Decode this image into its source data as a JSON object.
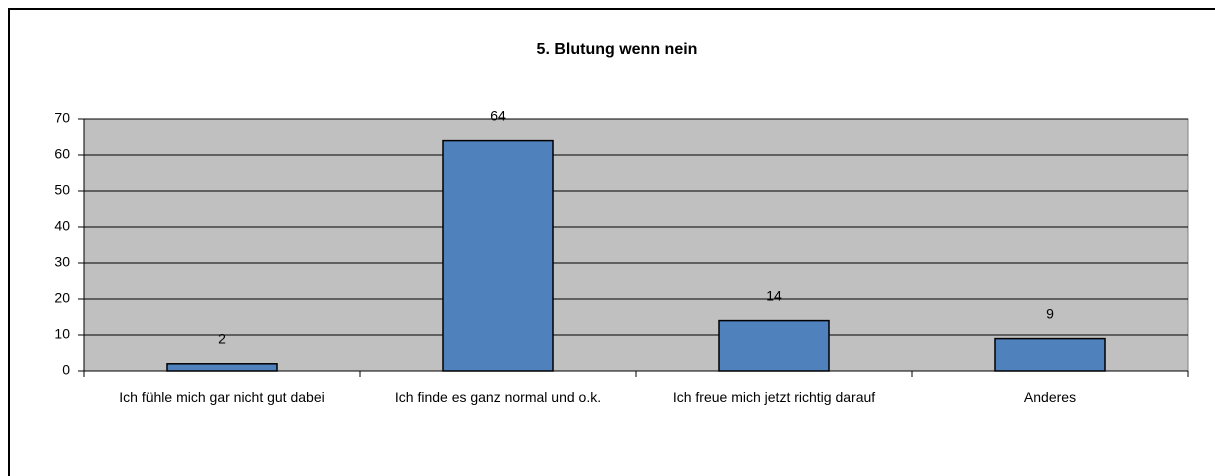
{
  "chart_data": {
    "type": "bar",
    "title": "5. Blutung wenn nein",
    "categories": [
      "Ich fühle mich gar nicht gut dabei",
      "Ich finde es ganz normal und o.k.",
      "Ich freue mich jetzt richtig darauf",
      "Anderes"
    ],
    "values": [
      2,
      64,
      14,
      9
    ],
    "color": "#4f81bd",
    "ylim": [
      0,
      70
    ],
    "yticks": [
      0,
      10,
      20,
      30,
      40,
      50,
      60,
      70
    ],
    "grid": true
  }
}
